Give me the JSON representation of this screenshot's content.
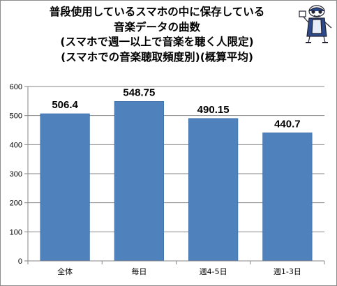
{
  "chart_data": {
    "type": "bar",
    "title_lines": [
      "普段使用しているスマホの中に保存している",
      "音楽データの曲数",
      "(スマホで週一以上で音楽を聴く人限定)",
      "(スマホでの音楽聴取頻度別)(概算平均)"
    ],
    "categories": [
      "全体",
      "毎日",
      "週4-5日",
      "週1-3日"
    ],
    "values": [
      506.4,
      548.75,
      490.15,
      440.7
    ],
    "value_labels": [
      "506.4",
      "548.75",
      "490.15",
      "440.7"
    ],
    "ylim": [
      0,
      600
    ],
    "yticks": [
      0,
      100,
      200,
      300,
      400,
      500,
      600
    ],
    "grid": true,
    "legend": "none",
    "colors": {
      "bar": "#4f81bd",
      "bar_edge": "#3a6a9f",
      "grid": "#868686",
      "axis": "#868686"
    }
  },
  "mascot": {
    "icon": "mascot-icon"
  }
}
